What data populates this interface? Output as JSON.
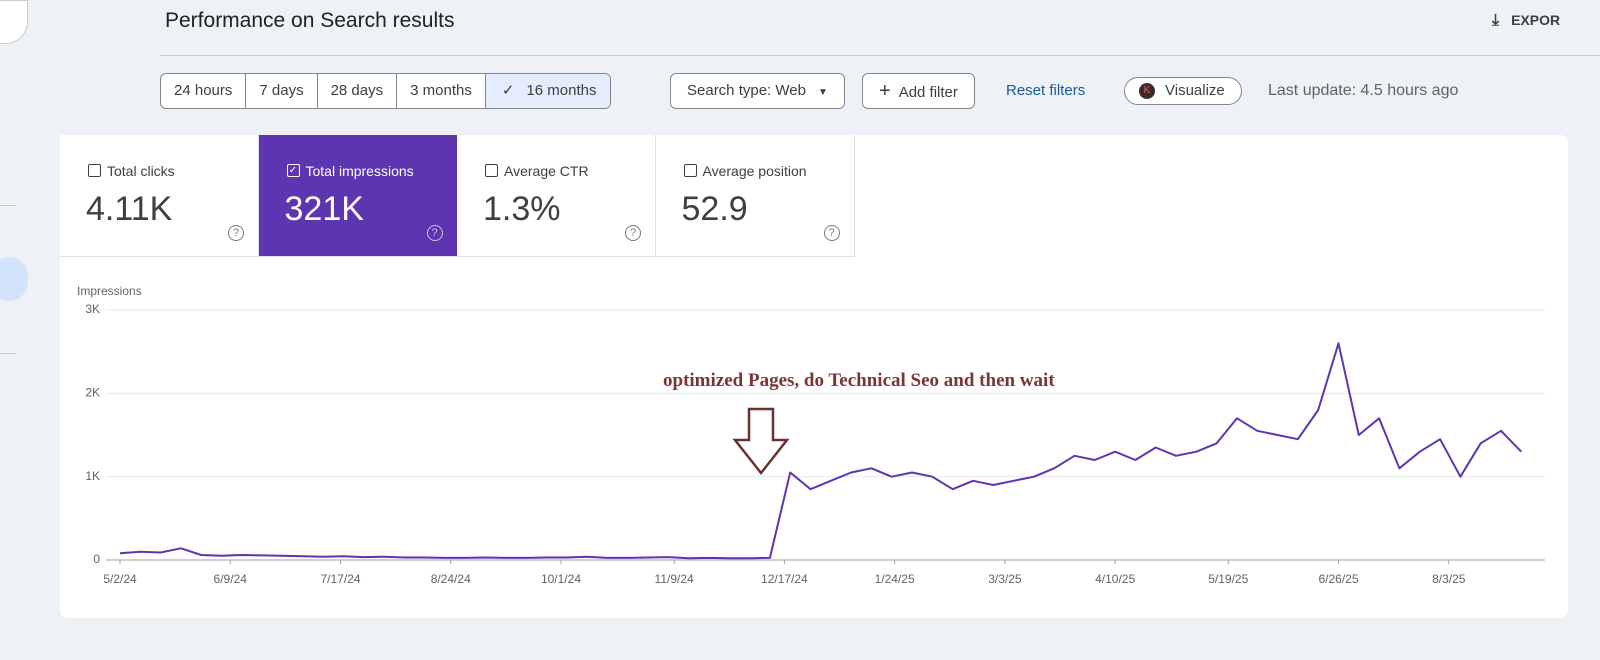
{
  "header": {
    "title": "Performance on Search results",
    "export": "EXPOR"
  },
  "filters": {
    "ranges": [
      "24 hours",
      "7 days",
      "28 days",
      "3 months",
      "16 months"
    ],
    "selected_range": 4,
    "search_type": "Search type: Web",
    "add_filter": "Add filter",
    "reset": "Reset filters",
    "visualize": "Visualize",
    "last_update": "Last update: 4.5 hours ago"
  },
  "metrics": [
    {
      "label": "Total clicks",
      "value": "4.11K",
      "checked": false
    },
    {
      "label": "Total impressions",
      "value": "321K",
      "checked": true
    },
    {
      "label": "Average CTR",
      "value": "1.3%",
      "checked": false
    },
    {
      "label": "Average position",
      "value": "52.9",
      "checked": false
    }
  ],
  "chart_data": {
    "type": "line",
    "y_label": "Impressions",
    "annotation": "optimized Pages, do Technical Seo and then wait",
    "x": [
      "5/2/24",
      "5/9/24",
      "5/16/24",
      "5/23/24",
      "5/30/24",
      "6/6/24",
      "6/13/24",
      "6/20/24",
      "6/27/24",
      "7/4/24",
      "7/11/24",
      "7/18/24",
      "7/25/24",
      "8/1/24",
      "8/8/24",
      "8/15/24",
      "8/22/24",
      "8/29/24",
      "9/5/24",
      "9/12/24",
      "9/19/24",
      "9/26/24",
      "10/3/24",
      "10/10/24",
      "10/17/24",
      "10/24/24",
      "10/31/24",
      "11/7/24",
      "11/14/24",
      "11/21/24",
      "11/28/24",
      "12/5/24",
      "12/12/24",
      "12/19/24",
      "12/26/24",
      "1/2/25",
      "1/9/25",
      "1/16/25",
      "1/23/25",
      "1/30/25",
      "2/6/25",
      "2/13/25",
      "2/20/25",
      "2/27/25",
      "3/6/25",
      "3/13/25",
      "3/20/25",
      "3/27/25",
      "4/3/25",
      "4/10/25",
      "4/17/25",
      "4/24/25",
      "5/1/25",
      "5/8/25",
      "5/15/25",
      "5/22/25",
      "5/29/25",
      "6/5/25",
      "6/12/25",
      "6/19/25",
      "6/26/25",
      "7/3/25",
      "7/10/25",
      "7/17/25",
      "7/24/25",
      "7/31/25",
      "8/7/25",
      "8/14/25",
      "8/21/25",
      "8/28/25"
    ],
    "values": [
      80,
      100,
      90,
      140,
      60,
      50,
      60,
      55,
      50,
      45,
      40,
      45,
      35,
      40,
      30,
      30,
      25,
      25,
      30,
      25,
      25,
      30,
      30,
      40,
      25,
      25,
      30,
      35,
      20,
      25,
      20,
      20,
      25,
      1050,
      850,
      950,
      1050,
      1100,
      1000,
      1050,
      1000,
      850,
      950,
      900,
      950,
      1000,
      1100,
      1250,
      1200,
      1300,
      1200,
      1350,
      1250,
      1300,
      1400,
      1700,
      1550,
      1500,
      1450,
      1800,
      2600,
      1500,
      1700,
      1100,
      1300,
      1450,
      1000,
      1400,
      1550,
      1300
    ],
    "color": "#5e35b1",
    "xlim": [
      "5/2/24",
      "8/31/25"
    ],
    "xticks": [
      "5/2/24",
      "6/9/24",
      "7/17/24",
      "8/24/24",
      "10/1/24",
      "11/9/24",
      "12/17/24",
      "1/24/25",
      "3/3/25",
      "4/10/25",
      "5/19/25",
      "6/26/25",
      "8/3/25"
    ],
    "ylim": [
      0,
      3000
    ],
    "yticks": [
      0,
      {
        "value": 1000,
        "label": "1K"
      },
      {
        "value": 2000,
        "label": "2K"
      },
      {
        "value": 3000,
        "label": "3K"
      }
    ],
    "grid": true
  }
}
